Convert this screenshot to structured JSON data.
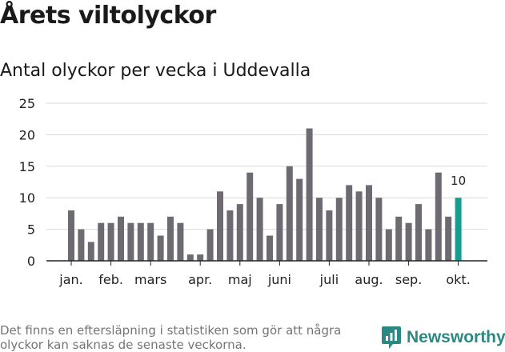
{
  "title": "Årets viltolyckor",
  "subtitle": "Antal olyckor per vecka i Uddevalla",
  "footnote": "Det finns en eftersläpning i statistiken som gör att några olyckor kan saknas de senaste veckorna.",
  "brand": {
    "name": "Newsworthy",
    "icon": "newsworthy-logo-icon",
    "color": "#2a8a83"
  },
  "colors": {
    "bar": "#6d6b71",
    "highlight": "#149d91",
    "grid": "#d9d9d9",
    "axis": "#222222"
  },
  "chart_data": {
    "type": "bar",
    "title": "Antal olyckor per vecka i Uddevalla",
    "xlabel": "",
    "ylabel": "",
    "ylim": [
      0,
      25
    ],
    "yticks": [
      0,
      5,
      10,
      15,
      20,
      25
    ],
    "weeks": [
      1,
      2,
      3,
      4,
      5,
      6,
      7,
      8,
      9,
      10,
      11,
      12,
      13,
      14,
      15,
      16,
      17,
      18,
      19,
      20,
      21,
      22,
      23,
      24,
      25,
      26,
      27,
      28,
      29,
      30,
      31,
      32,
      33,
      34,
      35,
      36,
      37,
      38,
      39,
      40
    ],
    "values": [
      8,
      5,
      3,
      6,
      6,
      7,
      6,
      6,
      6,
      4,
      7,
      6,
      1,
      1,
      5,
      11,
      8,
      9,
      14,
      10,
      4,
      9,
      15,
      13,
      21,
      10,
      8,
      10,
      12,
      11,
      12,
      10,
      5,
      7,
      6,
      9,
      5,
      14,
      7,
      10
    ],
    "month_ticks": [
      {
        "label": "jan.",
        "bar": 0
      },
      {
        "label": "feb.",
        "bar": 4
      },
      {
        "label": "mars",
        "bar": 8
      },
      {
        "label": "apr.",
        "bar": 13
      },
      {
        "label": "maj",
        "bar": 17
      },
      {
        "label": "juni",
        "bar": 21
      },
      {
        "label": "juli",
        "bar": 26
      },
      {
        "label": "aug.",
        "bar": 30
      },
      {
        "label": "sep.",
        "bar": 34
      },
      {
        "label": "okt.",
        "bar": 39
      }
    ],
    "highlight_index": 39,
    "highlight_label": "10"
  }
}
